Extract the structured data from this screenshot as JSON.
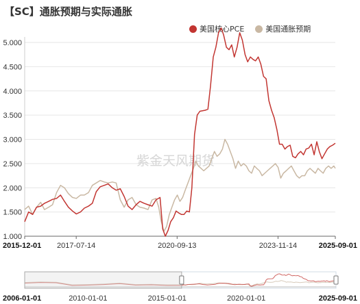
{
  "title": "【SC】通胀预期与实际通胀",
  "watermark": "紫金天风期货",
  "legend": [
    {
      "label": "美国核心PCE",
      "color": "#c23531"
    },
    {
      "label": "美国通胀预期",
      "color": "#c9b8a3"
    }
  ],
  "colors": {
    "pce": "#c23531",
    "expectation": "#c9b8a3",
    "grid": "#e6e6e6",
    "axis": "#666666"
  },
  "chart_data": {
    "type": "line",
    "ylim": [
      1.0,
      5.0
    ],
    "y_ticks": [
      "5.000",
      "4.500",
      "4.000",
      "3.500",
      "3.000",
      "2.500",
      "2.000",
      "1.500",
      "1.000"
    ],
    "x_range": [
      "2015-12-01",
      "2025-09-01"
    ],
    "x_ticks": [
      {
        "date": "2015-12-01",
        "label": "2015-12-01",
        "bold": true
      },
      {
        "date": "2017-07-14",
        "label": "2017-07-14",
        "bold": false
      },
      {
        "date": "2020-09-13",
        "label": "2020-09-13",
        "bold": false
      },
      {
        "date": "2023-11-14",
        "label": "2023-11-14",
        "bold": false
      },
      {
        "date": "2025-09-01",
        "label": "2025-09-01",
        "bold": true
      }
    ],
    "series": [
      {
        "name": "美国核心PCE",
        "color": "#c23531",
        "points": [
          [
            "2015-12-01",
            1.3
          ],
          [
            "2016-01-15",
            1.5
          ],
          [
            "2016-03-01",
            1.45
          ],
          [
            "2016-04-15",
            1.6
          ],
          [
            "2016-06-01",
            1.62
          ],
          [
            "2016-07-15",
            1.68
          ],
          [
            "2016-09-01",
            1.72
          ],
          [
            "2016-10-15",
            1.76
          ],
          [
            "2016-12-01",
            1.78
          ],
          [
            "2017-01-15",
            1.85
          ],
          [
            "2017-03-01",
            1.72
          ],
          [
            "2017-04-15",
            1.6
          ],
          [
            "2017-06-01",
            1.52
          ],
          [
            "2017-07-15",
            1.46
          ],
          [
            "2017-09-01",
            1.5
          ],
          [
            "2017-10-15",
            1.58
          ],
          [
            "2017-12-01",
            1.62
          ],
          [
            "2018-01-15",
            1.68
          ],
          [
            "2018-03-01",
            1.92
          ],
          [
            "2018-04-15",
            2.02
          ],
          [
            "2018-06-01",
            2.05
          ],
          [
            "2018-07-15",
            2.08
          ],
          [
            "2018-09-01",
            2.0
          ],
          [
            "2018-10-15",
            1.95
          ],
          [
            "2018-12-01",
            1.98
          ],
          [
            "2019-01-15",
            1.82
          ],
          [
            "2019-03-01",
            1.62
          ],
          [
            "2019-04-15",
            1.55
          ],
          [
            "2019-06-01",
            1.65
          ],
          [
            "2019-07-15",
            1.72
          ],
          [
            "2019-09-01",
            1.68
          ],
          [
            "2019-10-15",
            1.65
          ],
          [
            "2019-12-01",
            1.62
          ],
          [
            "2020-01-15",
            1.75
          ],
          [
            "2020-03-01",
            1.8
          ],
          [
            "2020-04-01",
            1.15
          ],
          [
            "2020-05-01",
            1.0
          ],
          [
            "2020-06-01",
            1.12
          ],
          [
            "2020-07-01",
            1.3
          ],
          [
            "2020-08-01",
            1.38
          ],
          [
            "2020-09-01",
            1.52
          ],
          [
            "2020-10-01",
            1.48
          ],
          [
            "2020-11-01",
            1.45
          ],
          [
            "2020-12-01",
            1.45
          ],
          [
            "2021-01-01",
            1.52
          ],
          [
            "2021-02-01",
            1.5
          ],
          [
            "2021-03-01",
            2.0
          ],
          [
            "2021-04-01",
            3.1
          ],
          [
            "2021-05-01",
            3.5
          ],
          [
            "2021-06-01",
            3.58
          ],
          [
            "2021-08-01",
            3.6
          ],
          [
            "2021-09-01",
            3.62
          ],
          [
            "2021-10-01",
            4.1
          ],
          [
            "2021-11-01",
            4.7
          ],
          [
            "2021-12-01",
            4.9
          ],
          [
            "2022-01-01",
            5.2
          ],
          [
            "2022-02-01",
            5.3
          ],
          [
            "2022-03-01",
            5.15
          ],
          [
            "2022-04-01",
            4.9
          ],
          [
            "2022-05-01",
            4.85
          ],
          [
            "2022-06-01",
            4.95
          ],
          [
            "2022-07-01",
            4.7
          ],
          [
            "2022-08-01",
            4.9
          ],
          [
            "2022-09-01",
            5.2
          ],
          [
            "2022-10-01",
            5.05
          ],
          [
            "2022-11-01",
            4.75
          ],
          [
            "2022-12-01",
            4.6
          ],
          [
            "2023-01-01",
            4.7
          ],
          [
            "2023-02-01",
            4.65
          ],
          [
            "2023-03-01",
            4.62
          ],
          [
            "2023-04-01",
            4.7
          ],
          [
            "2023-05-01",
            4.55
          ],
          [
            "2023-06-01",
            4.3
          ],
          [
            "2023-07-01",
            4.25
          ],
          [
            "2023-08-01",
            3.8
          ],
          [
            "2023-09-01",
            3.6
          ],
          [
            "2023-10-01",
            3.45
          ],
          [
            "2023-11-01",
            3.2
          ],
          [
            "2023-12-01",
            2.9
          ],
          [
            "2024-01-01",
            2.9
          ],
          [
            "2024-02-01",
            2.8
          ],
          [
            "2024-03-01",
            2.85
          ],
          [
            "2024-04-01",
            2.88
          ],
          [
            "2024-05-01",
            2.65
          ],
          [
            "2024-06-01",
            2.62
          ],
          [
            "2024-07-01",
            2.7
          ],
          [
            "2024-08-01",
            2.75
          ],
          [
            "2024-09-01",
            2.68
          ],
          [
            "2024-10-01",
            2.8
          ],
          [
            "2024-11-01",
            2.82
          ],
          [
            "2024-12-01",
            2.9
          ],
          [
            "2025-01-01",
            2.68
          ],
          [
            "2025-02-01",
            2.95
          ],
          [
            "2025-03-01",
            2.75
          ],
          [
            "2025-04-01",
            2.6
          ],
          [
            "2025-05-01",
            2.7
          ],
          [
            "2025-06-01",
            2.8
          ],
          [
            "2025-07-01",
            2.85
          ],
          [
            "2025-08-01",
            2.88
          ],
          [
            "2025-09-01",
            2.92
          ]
        ]
      },
      {
        "name": "美国通胀预期",
        "color": "#c9b8a3",
        "points": [
          [
            "2015-12-01",
            1.55
          ],
          [
            "2016-01-15",
            1.62
          ],
          [
            "2016-03-01",
            1.45
          ],
          [
            "2016-04-15",
            1.6
          ],
          [
            "2016-06-01",
            1.7
          ],
          [
            "2016-07-15",
            1.55
          ],
          [
            "2016-09-01",
            1.6
          ],
          [
            "2016-10-15",
            1.65
          ],
          [
            "2016-12-01",
            1.9
          ],
          [
            "2017-01-15",
            2.05
          ],
          [
            "2017-03-01",
            2.0
          ],
          [
            "2017-04-15",
            1.88
          ],
          [
            "2017-06-01",
            1.8
          ],
          [
            "2017-07-15",
            1.78
          ],
          [
            "2017-09-01",
            1.85
          ],
          [
            "2017-10-15",
            1.85
          ],
          [
            "2017-12-01",
            1.9
          ],
          [
            "2018-01-15",
            2.05
          ],
          [
            "2018-03-01",
            2.1
          ],
          [
            "2018-04-15",
            2.15
          ],
          [
            "2018-06-01",
            2.12
          ],
          [
            "2018-07-15",
            2.1
          ],
          [
            "2018-09-01",
            2.12
          ],
          [
            "2018-10-15",
            2.1
          ],
          [
            "2018-12-01",
            1.75
          ],
          [
            "2019-01-15",
            1.6
          ],
          [
            "2019-03-01",
            1.75
          ],
          [
            "2019-04-15",
            1.8
          ],
          [
            "2019-06-01",
            1.65
          ],
          [
            "2019-07-15",
            1.6
          ],
          [
            "2019-09-01",
            1.58
          ],
          [
            "2019-10-15",
            1.55
          ],
          [
            "2019-12-01",
            1.75
          ],
          [
            "2020-01-15",
            1.78
          ],
          [
            "2020-02-15",
            1.6
          ],
          [
            "2020-03-15",
            1.3
          ],
          [
            "2020-04-15",
            1.1
          ],
          [
            "2020-05-15",
            1.2
          ],
          [
            "2020-06-15",
            1.45
          ],
          [
            "2020-07-15",
            1.6
          ],
          [
            "2020-08-15",
            1.75
          ],
          [
            "2020-09-15",
            1.85
          ],
          [
            "2020-10-15",
            1.72
          ],
          [
            "2020-11-15",
            1.8
          ],
          [
            "2020-12-15",
            1.95
          ],
          [
            "2021-01-15",
            2.1
          ],
          [
            "2021-02-15",
            2.25
          ],
          [
            "2021-03-15",
            2.38
          ],
          [
            "2021-04-15",
            2.55
          ],
          [
            "2021-05-15",
            2.45
          ],
          [
            "2021-06-15",
            2.4
          ],
          [
            "2021-07-15",
            2.35
          ],
          [
            "2021-08-15",
            2.4
          ],
          [
            "2021-09-15",
            2.45
          ],
          [
            "2021-10-15",
            2.6
          ],
          [
            "2021-11-15",
            2.75
          ],
          [
            "2021-12-15",
            2.65
          ],
          [
            "2022-01-15",
            2.7
          ],
          [
            "2022-02-15",
            2.8
          ],
          [
            "2022-03-15",
            3.0
          ],
          [
            "2022-04-15",
            2.9
          ],
          [
            "2022-05-15",
            2.75
          ],
          [
            "2022-06-15",
            2.6
          ],
          [
            "2022-07-15",
            2.4
          ],
          [
            "2022-08-15",
            2.55
          ],
          [
            "2022-09-15",
            2.45
          ],
          [
            "2022-10-15",
            2.5
          ],
          [
            "2022-11-15",
            2.45
          ],
          [
            "2022-12-15",
            2.35
          ],
          [
            "2023-01-15",
            2.3
          ],
          [
            "2023-02-15",
            2.45
          ],
          [
            "2023-03-15",
            2.4
          ],
          [
            "2023-04-15",
            2.35
          ],
          [
            "2023-05-15",
            2.25
          ],
          [
            "2023-06-15",
            2.3
          ],
          [
            "2023-07-15",
            2.35
          ],
          [
            "2023-08-15",
            2.4
          ],
          [
            "2023-09-15",
            2.45
          ],
          [
            "2023-10-15",
            2.5
          ],
          [
            "2023-11-15",
            2.42
          ],
          [
            "2023-12-15",
            2.2
          ],
          [
            "2024-01-15",
            2.3
          ],
          [
            "2024-02-15",
            2.35
          ],
          [
            "2024-03-15",
            2.4
          ],
          [
            "2024-04-15",
            2.45
          ],
          [
            "2024-05-15",
            2.35
          ],
          [
            "2024-06-15",
            2.25
          ],
          [
            "2024-07-15",
            2.2
          ],
          [
            "2024-08-15",
            2.25
          ],
          [
            "2024-09-15",
            2.25
          ],
          [
            "2024-10-15",
            2.35
          ],
          [
            "2024-11-15",
            2.4
          ],
          [
            "2024-12-15",
            2.35
          ],
          [
            "2025-01-15",
            2.3
          ],
          [
            "2025-02-15",
            2.4
          ],
          [
            "2025-03-15",
            2.35
          ],
          [
            "2025-04-15",
            2.3
          ],
          [
            "2025-05-15",
            2.4
          ],
          [
            "2025-06-15",
            2.45
          ],
          [
            "2025-07-15",
            2.4
          ],
          [
            "2025-08-15",
            2.45
          ],
          [
            "2025-09-01",
            2.4
          ]
        ]
      }
    ]
  },
  "slider": {
    "range": [
      "2006-01-01",
      "2025-09-01"
    ],
    "labels": [
      "2006-01-01",
      "2010-01-01",
      "2015-01-01",
      "2020-01-01",
      "2025-09-01"
    ],
    "selected": [
      "2015-12-01",
      "2025-09-01"
    ]
  }
}
